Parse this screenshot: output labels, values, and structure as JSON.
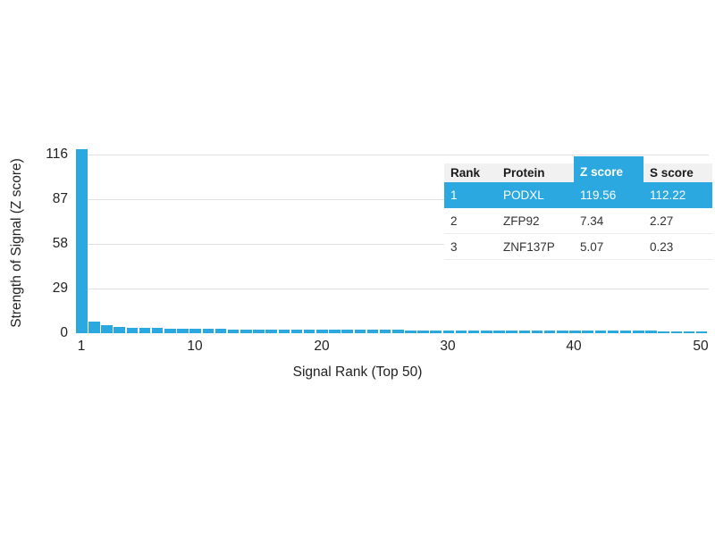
{
  "colors": {
    "accent_blue": "#2aa8df",
    "grid_gray": "#e0e0e0",
    "table_header_bg": "#f1f1f1",
    "text_dark": "#222222"
  },
  "labels": {
    "yticks": [
      "116",
      "87",
      "58",
      "29",
      "0"
    ],
    "xticks": [
      "1",
      "10",
      "20",
      "30",
      "40",
      "50"
    ]
  },
  "chart_data": {
    "type": "bar",
    "title": "",
    "xlabel": "Signal Rank (Top 50)",
    "ylabel": "Strength of Signal (Z score)",
    "ylim": [
      0,
      116
    ],
    "yticks": [
      0,
      29,
      58,
      87,
      116
    ],
    "xticks": [
      1,
      10,
      20,
      30,
      40,
      50
    ],
    "grid": "horizontal",
    "legend": "none",
    "bar_color": "#2aa8df",
    "x": [
      1,
      2,
      3,
      4,
      5,
      6,
      7,
      8,
      9,
      10,
      11,
      12,
      13,
      14,
      15,
      16,
      17,
      18,
      19,
      20,
      21,
      22,
      23,
      24,
      25,
      26,
      27,
      28,
      29,
      30,
      31,
      32,
      33,
      34,
      35,
      36,
      37,
      38,
      39,
      40,
      41,
      42,
      43,
      44,
      45,
      46,
      47,
      48,
      49,
      50
    ],
    "values": [
      119.56,
      7.34,
      5.07,
      3.9,
      3.6,
      3.4,
      3.2,
      3.05,
      2.95,
      2.85,
      2.75,
      2.7,
      2.6,
      2.55,
      2.5,
      2.45,
      2.4,
      2.35,
      2.3,
      2.25,
      2.2,
      2.17,
      2.14,
      2.1,
      2.07,
      2.04,
      2.0,
      1.97,
      1.94,
      1.9,
      1.88,
      1.85,
      1.82,
      1.8,
      1.77,
      1.74,
      1.71,
      1.68,
      1.66,
      1.63,
      1.6,
      1.58,
      1.55,
      1.52,
      1.5,
      1.48,
      1.45,
      1.42,
      1.4,
      1.38
    ]
  },
  "table": {
    "headers": [
      "Rank",
      "Protein",
      "Z score",
      "S score"
    ],
    "highlighted_column": "Z score",
    "rows": [
      {
        "rank": "1",
        "protein": "PODXL",
        "z": "119.56",
        "s": "112.22",
        "highlighted": true
      },
      {
        "rank": "2",
        "protein": "ZFP92",
        "z": "7.34",
        "s": "2.27",
        "highlighted": false
      },
      {
        "rank": "3",
        "protein": "ZNF137P",
        "z": "5.07",
        "s": "0.23",
        "highlighted": false
      }
    ]
  }
}
